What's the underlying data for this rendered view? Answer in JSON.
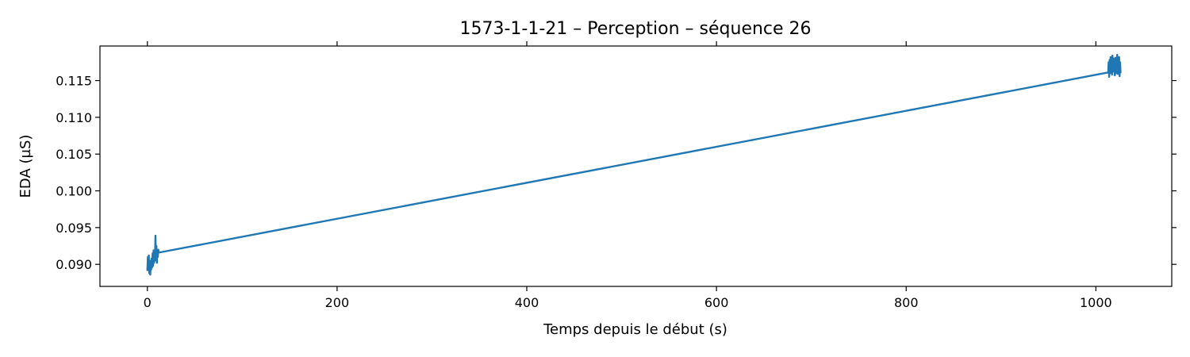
{
  "chart_data": {
    "type": "line",
    "title": "1573-1-1-21 – Perception – séquence 26",
    "xlabel": "Temps depuis le début (s)",
    "ylabel": "EDA (µS)",
    "xlim": [
      -50,
      1080
    ],
    "ylim": [
      0.087,
      0.1197
    ],
    "x_ticks": [
      0,
      200,
      400,
      600,
      800,
      1000
    ],
    "x_tick_labels": [
      "0",
      "200",
      "400",
      "600",
      "800",
      "1000"
    ],
    "y_ticks": [
      0.09,
      0.095,
      0.1,
      0.105,
      0.11,
      0.115
    ],
    "y_tick_labels": [
      "0.090",
      "0.095",
      "0.100",
      "0.105",
      "0.110",
      "0.115"
    ],
    "grid": false,
    "series": [
      {
        "color": "#1f77b4",
        "x": [
          0,
          0.5,
          1,
          1.5,
          2,
          2.5,
          3,
          3.5,
          4,
          4.5,
          5,
          5.5,
          6,
          6.5,
          7,
          7.5,
          8,
          8.5,
          9,
          9.5,
          10,
          10.5,
          11,
          11.5,
          12,
          1013,
          1013.5,
          1014,
          1014.5,
          1015,
          1015.5,
          1016,
          1016.5,
          1017,
          1017.5,
          1018,
          1018.5,
          1019,
          1019.5,
          1020,
          1020.5,
          1021,
          1021.5,
          1022,
          1022.5,
          1023,
          1023.5,
          1024,
          1024.5,
          1025,
          1025.5,
          1026
        ],
        "y": [
          0.0892,
          0.091,
          0.0895,
          0.0912,
          0.0888,
          0.0905,
          0.0886,
          0.09,
          0.0893,
          0.0908,
          0.0896,
          0.0915,
          0.0898,
          0.0919,
          0.0902,
          0.0915,
          0.0905,
          0.0939,
          0.091,
          0.0925,
          0.0902,
          0.0918,
          0.091,
          0.092,
          0.0916,
          0.1161,
          0.1175,
          0.1155,
          0.1178,
          0.116,
          0.1182,
          0.1163,
          0.1176,
          0.1158,
          0.1184,
          0.1162,
          0.118,
          0.1165,
          0.1173,
          0.1157,
          0.1181,
          0.116,
          0.1177,
          0.1164,
          0.1185,
          0.1159,
          0.1178,
          0.1162,
          0.1182,
          0.1156,
          0.1175,
          0.1161
        ]
      }
    ]
  }
}
